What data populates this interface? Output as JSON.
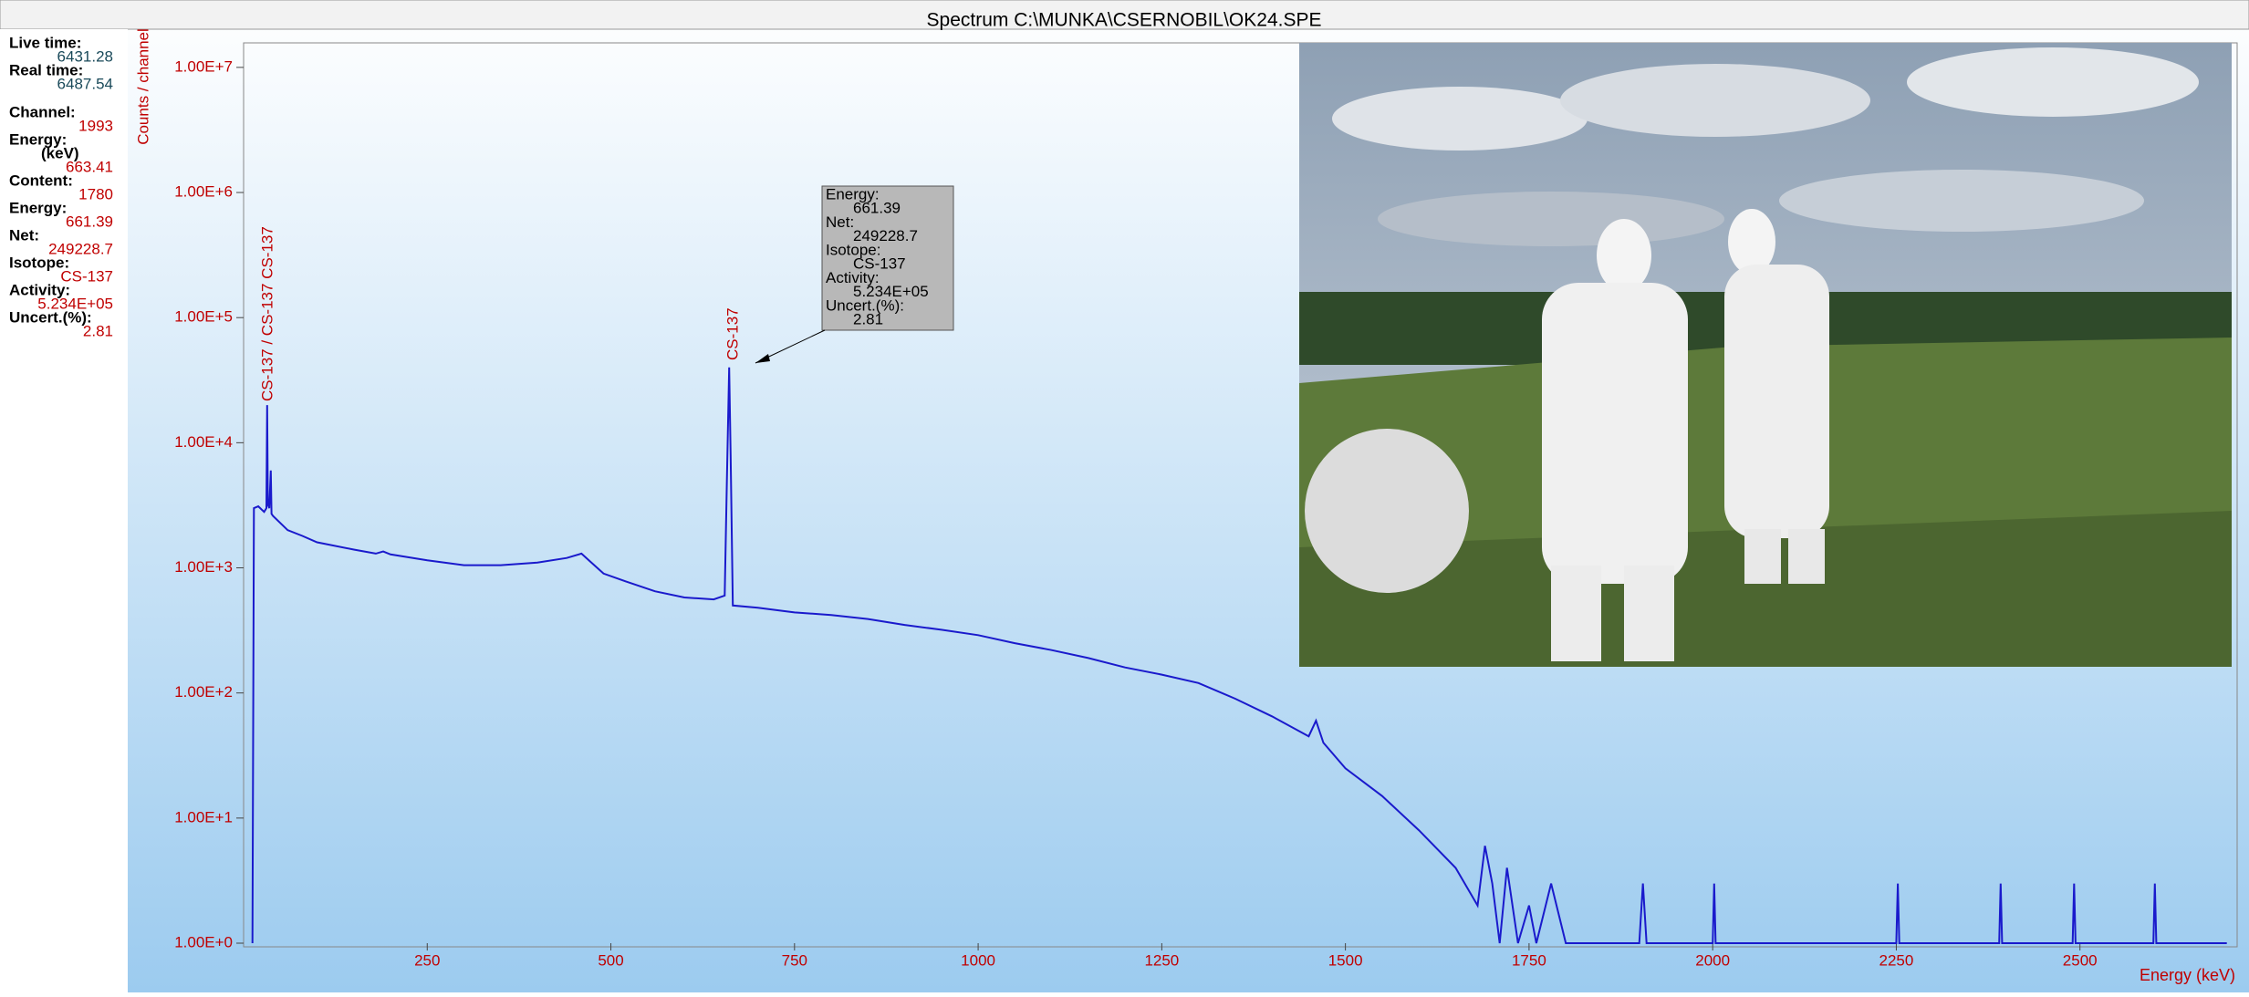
{
  "window": {
    "title": "Spectrum C:\\MUNKA\\CSERNOBIL\\OK24.SPE"
  },
  "panel": {
    "items": [
      {
        "label": "Live time:",
        "value": "6431.28"
      },
      {
        "label": "Real time:",
        "value": "6487.54"
      },
      {
        "label": "Channel:",
        "value": "1993"
      },
      {
        "label": "Energy:",
        "unit": "(keV)",
        "value": "663.41"
      },
      {
        "label": "Content:",
        "value": "1780"
      },
      {
        "label": "Energy:",
        "value": "661.39"
      },
      {
        "label": "Net:",
        "value": "249228.7"
      },
      {
        "label": "Isotope:",
        "value": "CS-137"
      },
      {
        "label": "Activity:",
        "value": "5.234E+05"
      },
      {
        "label": "Uncert.(%):",
        "value": "2.81"
      }
    ]
  },
  "tooltip": {
    "items": [
      {
        "label": "Energy:",
        "value": "661.39"
      },
      {
        "label": "Net:",
        "value": "249228.7"
      },
      {
        "label": "Isotope:",
        "value": "CS-137"
      },
      {
        "label": "Activity:",
        "value": "5.234E+05"
      },
      {
        "label": "Uncert.(%):",
        "value": "2.81"
      }
    ]
  },
  "chart_data": {
    "type": "line",
    "ylabel": "Counts / channel",
    "xlabel": "Energy (keV)",
    "log_y": true,
    "color": "#1a1acc",
    "annotations": [
      "CS-137 / CS-137 CS-137",
      "CS-137"
    ],
    "xlim": [
      0,
      2714
    ],
    "xticks": [
      250,
      500,
      750,
      1000,
      1250,
      1500,
      1750,
      2000,
      2250,
      2500
    ],
    "ylim": [
      1,
      15700000
    ],
    "yticks": [
      {
        "value": 1,
        "label": "1.00E+0"
      },
      {
        "value": 10,
        "label": "1.00E+1"
      },
      {
        "value": 100,
        "label": "1.00E+2"
      },
      {
        "value": 1000,
        "label": "1.00E+3"
      },
      {
        "value": 10000,
        "label": "1.00E+4"
      },
      {
        "value": 100000,
        "label": "1.00E+5"
      },
      {
        "value": 1000000,
        "label": "1.00E+6"
      },
      {
        "value": 10000000,
        "label": "1.00E+7"
      }
    ],
    "x": [
      12,
      14,
      20,
      28,
      31,
      32,
      33,
      35,
      37,
      38,
      40,
      60,
      80,
      100,
      150,
      180,
      190,
      200,
      250,
      300,
      350,
      400,
      440,
      460,
      470,
      490,
      520,
      560,
      600,
      640,
      655,
      658,
      661,
      663,
      666,
      700,
      750,
      800,
      850,
      900,
      950,
      1000,
      1050,
      1100,
      1150,
      1200,
      1250,
      1300,
      1350,
      1400,
      1450,
      1460,
      1470,
      1500,
      1550,
      1600,
      1650,
      1680,
      1690,
      1700,
      1710,
      1720,
      1735,
      1750,
      1760,
      1780,
      1800,
      1900,
      1905,
      1910,
      2000,
      2002,
      2004,
      2250,
      2252,
      2254,
      2390,
      2392,
      2394,
      2490,
      2492,
      2494,
      2600,
      2602,
      2604,
      2700
    ],
    "values": [
      1,
      3000,
      3100,
      2800,
      3000,
      20000,
      3200,
      3000,
      6000,
      2700,
      2600,
      2000,
      1800,
      1600,
      1400,
      1300,
      1350,
      1280,
      1150,
      1050,
      1050,
      1100,
      1200,
      1300,
      1150,
      900,
      780,
      650,
      580,
      560,
      600,
      5000,
      40000,
      8000,
      500,
      480,
      440,
      420,
      390,
      350,
      320,
      290,
      250,
      220,
      190,
      160,
      140,
      120,
      90,
      65,
      45,
      60,
      40,
      25,
      15,
      8,
      4,
      2,
      6,
      3,
      1,
      4,
      1,
      2,
      1,
      3,
      1,
      1,
      3,
      1,
      1,
      3,
      1,
      1,
      3,
      1,
      1,
      3,
      1,
      1,
      3,
      1,
      1,
      3,
      1,
      1
    ]
  }
}
